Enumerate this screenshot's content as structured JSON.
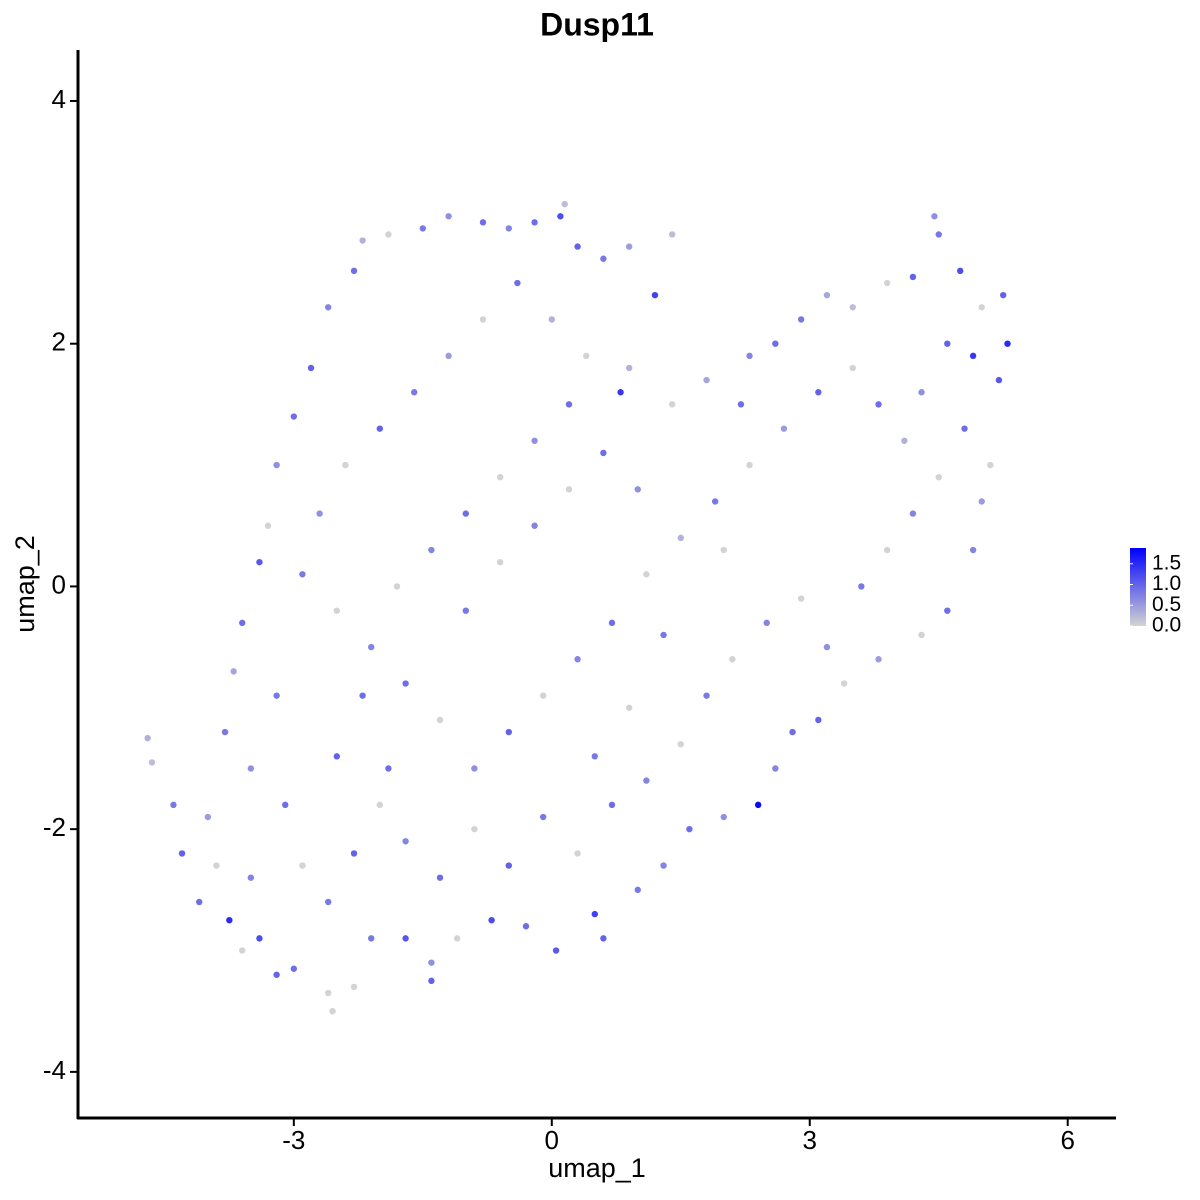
{
  "chart_data": {
    "type": "scatter",
    "title": "Dusp11",
    "xlabel": "umap_1",
    "ylabel": "umap_2",
    "xlim": [
      -5.51,
      6.55
    ],
    "ylim": [
      -4.38,
      4.42
    ],
    "xticks": [
      -3,
      0,
      3,
      6
    ],
    "yticks": [
      -4,
      -2,
      0,
      2,
      4
    ],
    "x": [
      -4.7,
      -4.65,
      -4.4,
      -4.3,
      -4.1,
      -3.9,
      -3.75,
      -3.6,
      -3.4,
      -3.2,
      -3.0,
      -2.6,
      -2.55,
      -2.3,
      -2.1,
      -1.7,
      -1.4,
      -1.4,
      -1.1,
      -0.7,
      -0.3,
      0.05,
      0.5,
      0.6,
      1.0,
      1.3,
      1.6,
      2.0,
      2.4,
      2.6,
      2.8,
      3.1,
      3.4,
      3.8,
      4.3,
      4.6,
      4.9,
      5.0,
      5.1,
      4.8,
      5.2,
      5.3,
      5.25,
      5.0,
      4.75,
      4.5,
      4.45,
      4.2,
      3.9,
      3.5,
      3.2,
      2.9,
      2.6,
      2.3,
      1.8,
      1.4,
      0.9,
      0.8,
      0.9,
      1.2,
      1.4,
      0.6,
      0.3,
      0.15,
      0.1,
      -0.2,
      -0.5,
      -0.8,
      -1.2,
      -1.5,
      -1.9,
      -2.2,
      -2.3,
      -2.6,
      -2.8,
      -3.0,
      -3.2,
      -3.3,
      -3.4,
      -3.6,
      -3.7,
      -3.8,
      -3.5,
      -3.1,
      -2.9,
      -2.6,
      -2.3,
      -2.0,
      -1.7,
      -1.3,
      -0.9,
      -0.5,
      -0.1,
      0.3,
      0.7,
      1.1,
      1.5,
      1.8,
      2.1,
      2.5,
      2.9,
      3.2,
      3.6,
      3.9,
      4.2,
      4.5,
      4.1,
      3.8,
      3.5,
      3.1,
      2.7,
      2.3,
      1.9,
      1.5,
      1.1,
      0.7,
      0.3,
      -0.1,
      -0.5,
      -0.9,
      -1.3,
      -1.7,
      -2.1,
      -2.5,
      -2.9,
      -2.7,
      -2.4,
      -2.0,
      -1.6,
      -1.2,
      -0.8,
      -0.4,
      0.0,
      0.4,
      0.2,
      -0.2,
      -0.6,
      -1.0,
      -1.4,
      -1.8,
      -2.2,
      -1.0,
      -0.6,
      -0.2,
      0.2,
      0.6,
      1.0,
      1.3,
      0.9,
      0.5,
      2.2,
      2.0,
      4.6,
      4.9,
      4.3,
      -3.5,
      -4.0,
      -3.2,
      -2.5,
      -1.9
    ],
    "y": [
      -1.25,
      -1.45,
      -1.8,
      -2.2,
      -2.6,
      -2.3,
      -2.75,
      -3.0,
      -2.9,
      -3.2,
      -3.15,
      -3.35,
      -3.5,
      -3.3,
      -2.9,
      -2.9,
      -3.1,
      -3.25,
      -2.9,
      -2.75,
      -2.8,
      -3.0,
      -2.7,
      -2.9,
      -2.5,
      -2.3,
      -2.0,
      -1.9,
      -1.8,
      -1.5,
      -1.2,
      -1.1,
      -0.8,
      -0.6,
      -0.4,
      -0.2,
      0.3,
      0.7,
      1.0,
      1.3,
      1.7,
      2.0,
      2.4,
      2.3,
      2.6,
      2.9,
      3.05,
      2.55,
      2.5,
      2.3,
      2.4,
      2.2,
      2.0,
      1.9,
      1.7,
      1.5,
      1.8,
      1.6,
      2.8,
      2.4,
      2.9,
      2.7,
      2.8,
      3.15,
      3.05,
      3.0,
      2.95,
      3.0,
      3.05,
      2.95,
      2.9,
      2.85,
      2.6,
      2.3,
      1.8,
      1.4,
      1.0,
      0.5,
      0.2,
      -0.3,
      -0.7,
      -1.2,
      -1.5,
      -1.8,
      -2.3,
      -2.6,
      -2.2,
      -1.8,
      -2.1,
      -2.4,
      -2.0,
      -2.3,
      -1.9,
      -2.2,
      -1.8,
      -1.6,
      -1.3,
      -0.9,
      -0.6,
      -0.3,
      -0.1,
      -0.5,
      0.0,
      0.3,
      0.6,
      0.9,
      1.2,
      1.5,
      1.8,
      1.6,
      1.3,
      1.0,
      0.7,
      0.4,
      0.1,
      -0.3,
      -0.6,
      -0.9,
      -1.2,
      -1.5,
      -1.1,
      -0.8,
      -0.5,
      -0.2,
      0.1,
      0.6,
      1.0,
      1.3,
      1.6,
      1.9,
      2.2,
      2.5,
      2.2,
      1.9,
      1.5,
      1.2,
      0.9,
      0.6,
      0.3,
      0.0,
      -0.9,
      -0.2,
      0.2,
      0.5,
      0.8,
      1.1,
      0.8,
      -0.4,
      -1.0,
      -1.4,
      1.5,
      0.3,
      2.0,
      1.9,
      1.6,
      -2.4,
      -1.9,
      -0.9,
      -1.4,
      -1.5
    ],
    "expression": [
      0.3,
      0.2,
      0.8,
      1.0,
      0.9,
      0,
      1.5,
      0,
      1.2,
      1.0,
      0.9,
      0,
      0,
      0,
      0.8,
      1.1,
      0.6,
      1.0,
      0,
      1.2,
      0.9,
      1.1,
      1.3,
      1.0,
      0.8,
      0.7,
      0.9,
      0.6,
      1.8,
      0.7,
      0.9,
      1.0,
      0,
      0.5,
      0,
      0.9,
      0.7,
      0.5,
      0,
      0.9,
      1.1,
      1.5,
      1.0,
      0,
      1.2,
      0.8,
      0.6,
      1.0,
      0,
      0.2,
      0.4,
      0.8,
      0.9,
      0.7,
      0.4,
      0,
      0.3,
      1.4,
      0.5,
      1.3,
      0.2,
      0.8,
      1.0,
      0.2,
      1.2,
      0.9,
      0.7,
      0.9,
      0.6,
      0.8,
      0,
      0.3,
      0.9,
      0.7,
      1.0,
      0.9,
      0.6,
      0,
      1.1,
      0.9,
      0.4,
      0.8,
      0.6,
      0.9,
      0,
      0.8,
      1.0,
      0,
      0.7,
      0.9,
      0,
      1.0,
      0.8,
      0,
      0.9,
      0.7,
      0,
      0.8,
      0,
      0.7,
      0,
      0.6,
      0.8,
      0,
      0.7,
      0,
      0.3,
      0.9,
      0,
      1.0,
      0.5,
      0,
      0.8,
      0.3,
      0,
      0.9,
      0.7,
      0,
      1.0,
      0.6,
      0,
      0.9,
      0.7,
      0,
      0.8,
      0.6,
      0,
      1.0,
      0.8,
      0.5,
      0,
      0.9,
      0.3,
      0,
      0.9,
      0.6,
      0,
      0.9,
      0.7,
      0,
      0.9,
      0.8,
      0,
      0.7,
      0,
      0.9,
      0.6,
      0.8,
      0,
      0.8,
      0.9,
      0,
      1.0,
      1.4,
      0.6,
      0.7,
      0.5,
      0.8,
      1.0,
      0.9
    ],
    "colorbar": {
      "lim": [
        0,
        1.88
      ],
      "low_color": "#d3d3d3",
      "high_color": "#0000ff",
      "ticks": [
        {
          "value": 0,
          "label": "0.0"
        },
        0.5,
        {
          "value": 1,
          "label": "1.0"
        },
        1.5
      ]
    }
  }
}
